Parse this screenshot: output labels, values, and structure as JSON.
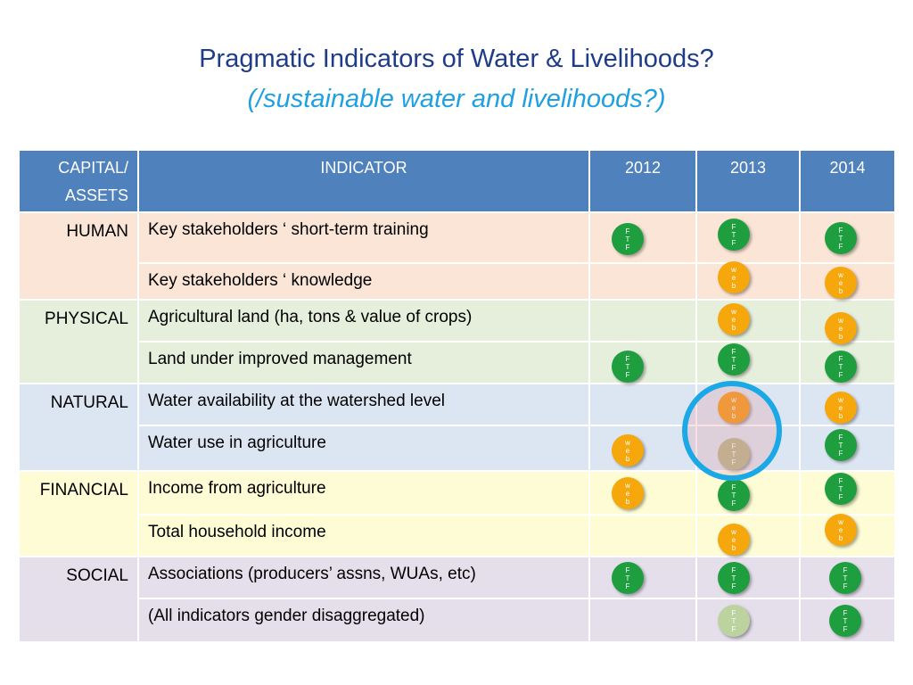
{
  "title": {
    "line1": "Pragmatic Indicators of Water & Livelihoods?",
    "line2": "(/sustainable water and livelihoods?)"
  },
  "table": {
    "headers": {
      "capital": "CAPITAL/ ASSETS",
      "indicator": "INDICATOR",
      "y2012": "2012",
      "y2013": "2013",
      "y2014": "2014"
    },
    "groups": {
      "human": "HUMAN",
      "physical": "PHYSICAL",
      "natural": "NATURAL",
      "financial": "FINANCIAL",
      "social": "SOCIAL"
    },
    "indicators": [
      "Key stakeholders ‘ short-term training",
      "Key stakeholders ‘ knowledge",
      "Agricultural land (ha, tons & value of crops)",
      "Land under improved management",
      "Water availability at the watershed level",
      "Water use in agriculture",
      "Income from agriculture",
      "Total household income",
      " Associations (producers’ assns, WUAs, etc)",
      "(All indicators gender disaggregated)"
    ]
  },
  "badges": {
    "ftf": [
      "F",
      "T",
      "F"
    ],
    "web": [
      "w",
      "e",
      "b"
    ]
  },
  "colors": {
    "header_blue": "#4f81bd",
    "title_navy": "#1f3c88",
    "subtitle_cyan": "#1fa0e0",
    "badge_green": "#1e9e3e",
    "badge_orange": "#f5a70c",
    "highlight_ring": "#1aa8e6"
  }
}
